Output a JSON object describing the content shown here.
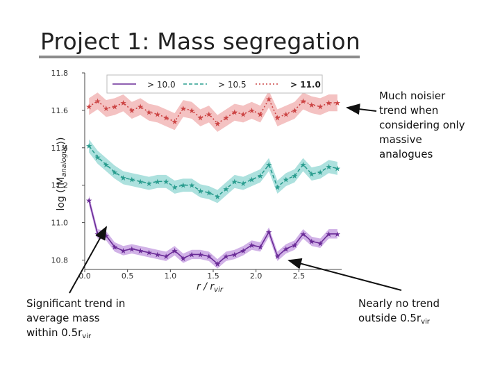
{
  "slide": {
    "title": "Project 1: Mass segregation"
  },
  "annotations": {
    "right_top": [
      "Much noisier",
      "trend when",
      "considering only",
      "massive",
      "analogues"
    ],
    "bottom_left": {
      "line1": "Significant trend in",
      "line2": "average mass",
      "line3_prefix": "within 0.5r",
      "line3_sub": "vir"
    },
    "bottom_right": {
      "line1": "Nearly no trend",
      "line2_prefix": "outside 0.5r",
      "line2_sub": "vir"
    }
  },
  "colors": {
    "series_purple": "#6a2b97",
    "series_teal": "#2a9d8f",
    "series_red": "#cc4444",
    "band_purple": "#c9a5e3",
    "band_teal": "#9fdcd8",
    "band_red": "#f2b7b7"
  },
  "chart_data": {
    "type": "line",
    "xlabel_main": "r / r",
    "xlabel_sub": "vir",
    "ylabel": "log (⟨M",
    "ylabel_sub": "analogue",
    "ylabel_close": "⟩)",
    "xlim": [
      0.0,
      3.0
    ],
    "ylim": [
      10.75,
      11.8
    ],
    "xticks": [
      0.0,
      0.5,
      1.0,
      1.5,
      2.0,
      2.5
    ],
    "xtick_labels": [
      "0.0",
      "0.5",
      "1.0",
      "1.5",
      "2.0",
      "2.5"
    ],
    "yticks": [
      10.8,
      11.0,
      11.2,
      11.4,
      11.6,
      11.8
    ],
    "ytick_labels": [
      "10.8",
      "11.0",
      "11.2",
      "11.4",
      "11.6",
      "11.8"
    ],
    "legend": [
      "> 10.0",
      "> 10.5",
      "> 11.0"
    ],
    "legend_position": "top",
    "x": [
      0.05,
      0.15,
      0.25,
      0.35,
      0.45,
      0.55,
      0.65,
      0.75,
      0.85,
      0.95,
      1.05,
      1.15,
      1.25,
      1.35,
      1.45,
      1.55,
      1.65,
      1.75,
      1.85,
      1.95,
      2.05,
      2.15,
      2.25,
      2.35,
      2.45,
      2.55,
      2.65,
      2.75,
      2.85,
      2.95
    ],
    "series": [
      {
        "name": "> 10.0",
        "color": "#6a2b97",
        "band": "#c9a5e3",
        "values": [
          11.12,
          10.94,
          10.93,
          10.87,
          10.85,
          10.86,
          10.85,
          10.84,
          10.83,
          10.82,
          10.85,
          10.81,
          10.83,
          10.83,
          10.82,
          10.78,
          10.82,
          10.83,
          10.85,
          10.88,
          10.87,
          10.95,
          10.82,
          10.86,
          10.88,
          10.94,
          10.9,
          10.89,
          10.94,
          10.94
        ],
        "err": 0.025
      },
      {
        "name": "> 10.5",
        "color": "#2a9d8f",
        "band": "#9fdcd8",
        "values": [
          11.41,
          11.35,
          11.31,
          11.27,
          11.24,
          11.23,
          11.22,
          11.21,
          11.22,
          11.22,
          11.19,
          11.2,
          11.2,
          11.17,
          11.16,
          11.14,
          11.18,
          11.22,
          11.21,
          11.23,
          11.25,
          11.31,
          11.19,
          11.23,
          11.25,
          11.31,
          11.26,
          11.27,
          11.3,
          11.29
        ],
        "err": 0.035
      },
      {
        "name": "> 11.0",
        "color": "#cc4444",
        "band": "#f2b7b7",
        "values": [
          11.62,
          11.65,
          11.61,
          11.62,
          11.64,
          11.6,
          11.62,
          11.59,
          11.58,
          11.56,
          11.54,
          11.61,
          11.6,
          11.56,
          11.58,
          11.53,
          11.56,
          11.59,
          11.58,
          11.6,
          11.58,
          11.66,
          11.56,
          11.58,
          11.6,
          11.65,
          11.63,
          11.62,
          11.64,
          11.64
        ],
        "err": 0.045
      }
    ]
  }
}
